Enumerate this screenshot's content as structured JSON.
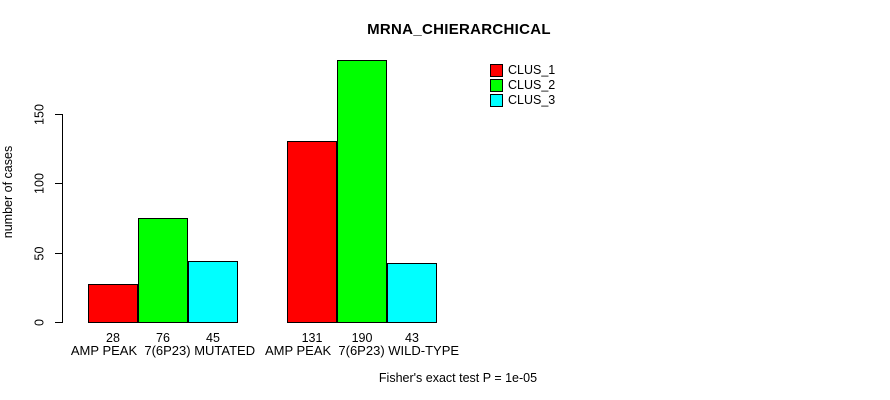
{
  "chart_data": {
    "type": "bar",
    "title": "MRNA_CHIERARCHICAL",
    "xlabel": "",
    "ylabel": "number of cases",
    "ylim": [
      0,
      150
    ],
    "yticks": [
      0,
      50,
      100,
      150
    ],
    "grid": false,
    "legend_position": "top-right",
    "categories": [
      "AMP PEAK  7(6P23) MUTATED",
      "AMP PEAK  7(6P23) WILD-TYPE"
    ],
    "series": [
      {
        "name": "CLUS_1",
        "color": "#ff0000",
        "values": [
          28,
          131
        ]
      },
      {
        "name": "CLUS_2",
        "color": "#00ff00",
        "values": [
          76,
          190
        ]
      },
      {
        "name": "CLUS_3",
        "color": "#00ffff",
        "values": [
          45,
          43
        ]
      }
    ],
    "bar_value_labels": [
      [
        28,
        76,
        45
      ],
      [
        131,
        190,
        43
      ]
    ],
    "footnote": "Fisher's exact test P = 1e-05",
    "text_color": "#000000",
    "background_color": "#ffffff"
  }
}
